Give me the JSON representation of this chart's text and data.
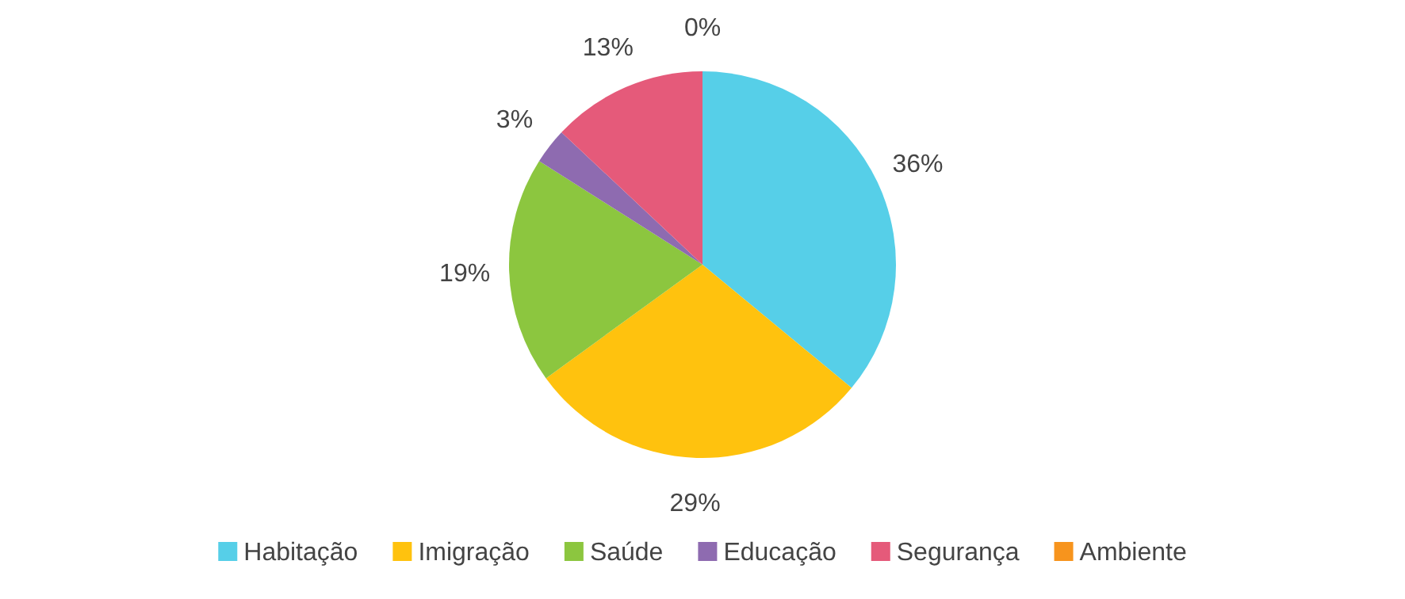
{
  "chart_data": {
    "type": "pie",
    "categories": [
      "Habitação",
      "Imigração",
      "Saúde",
      "Educação",
      "Segurança",
      "Ambiente"
    ],
    "values": [
      36,
      29,
      19,
      3,
      13,
      0
    ],
    "colors": [
      "#56cfe8",
      "#ffc20e",
      "#8cc63f",
      "#8e6bb0",
      "#e55a7a",
      "#f7941d"
    ],
    "value_labels": [
      "36%",
      "29%",
      "19%",
      "3%",
      "13%",
      "0%"
    ],
    "legend": "bottom"
  }
}
